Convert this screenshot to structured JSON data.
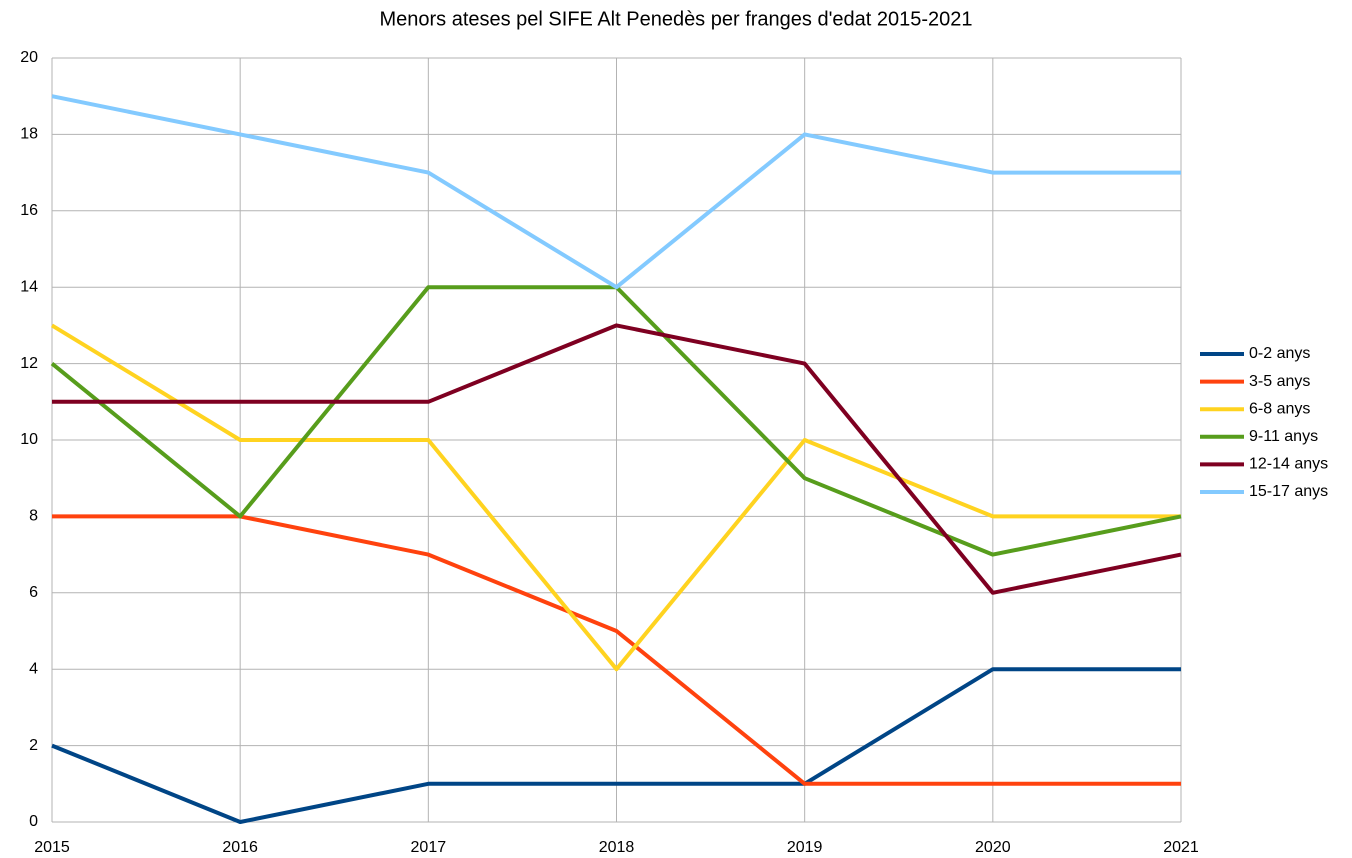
{
  "chart_data": {
    "type": "line",
    "title": "Menors ateses pel SIFE Alt Penedès per franges d'edat 2015-2021",
    "x": [
      2015,
      2016,
      2017,
      2018,
      2019,
      2020,
      2021
    ],
    "xlim": [
      2015,
      2021
    ],
    "xticks": [
      2015,
      2016,
      2017,
      2018,
      2019,
      2020,
      2021
    ],
    "ylim": [
      0,
      20
    ],
    "yticks": [
      0,
      2,
      4,
      6,
      8,
      10,
      12,
      14,
      16,
      18,
      20
    ],
    "grid": true,
    "legend": "right",
    "series": [
      {
        "name": "0-2 anys",
        "color": "#004586",
        "values": [
          2,
          0,
          1,
          1,
          1,
          4,
          4
        ]
      },
      {
        "name": "3-5 anys",
        "color": "#ff420e",
        "values": [
          8,
          8,
          7,
          5,
          1,
          1,
          1
        ]
      },
      {
        "name": "6-8 anys",
        "color": "#ffd320",
        "values": [
          13,
          10,
          10,
          4,
          10,
          8,
          8
        ]
      },
      {
        "name": "9-11 anys",
        "color": "#579d1c",
        "values": [
          12,
          8,
          14,
          14,
          9,
          7,
          8
        ]
      },
      {
        "name": "12-14 anys",
        "color": "#7e0021",
        "values": [
          11,
          11,
          11,
          13,
          12,
          6,
          7
        ]
      },
      {
        "name": "15-17 anys",
        "color": "#83caff",
        "values": [
          19,
          18,
          17,
          14,
          18,
          17,
          17
        ]
      }
    ]
  }
}
